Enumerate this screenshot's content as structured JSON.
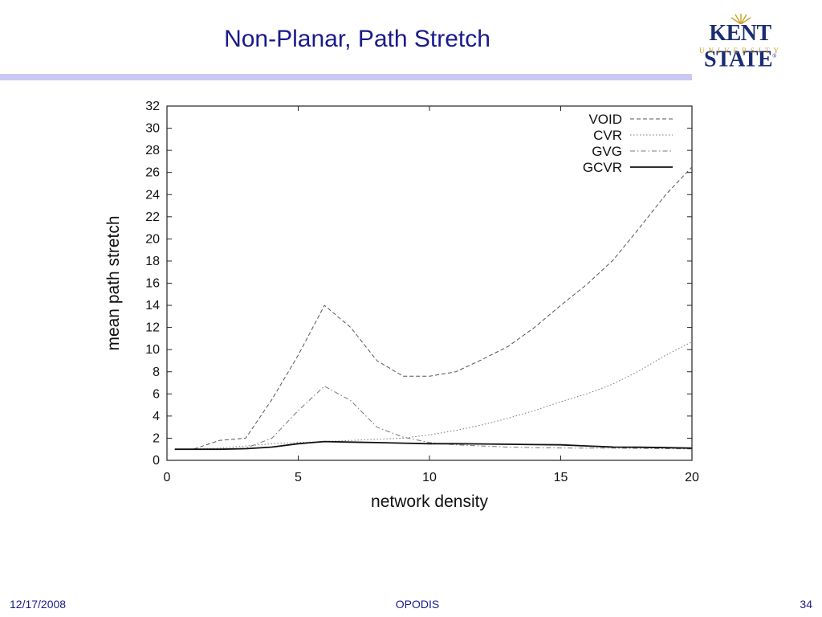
{
  "slide": {
    "title": "Non-Planar, Path Stretch",
    "logo_name": "KENT STATE",
    "logo_sub": "UNIVERSITY",
    "logo_registered": "®",
    "footer_date": "12/17/2008",
    "footer_center": "OPODIS",
    "footer_page": "34"
  },
  "colors": {
    "title": "#1a1a8c",
    "rule": "#c9c9f2",
    "logo_blue": "#1a2d73",
    "logo_gold": "#c9a227"
  },
  "chart_data": {
    "type": "line",
    "title": "",
    "xlabel": "network density",
    "ylabel": "mean path stretch",
    "xlim": [
      0,
      20
    ],
    "ylim": [
      0,
      32
    ],
    "xticks": [
      0,
      5,
      10,
      15,
      20
    ],
    "yticks": [
      0,
      2,
      4,
      6,
      8,
      10,
      12,
      14,
      16,
      18,
      20,
      22,
      24,
      26,
      28,
      30,
      32
    ],
    "grid": false,
    "legend_position": "top-right",
    "series": [
      {
        "name": "VOID",
        "dash": "dashed",
        "x": [
          0.3,
          1,
          2,
          3,
          4,
          5,
          6,
          7,
          8,
          9,
          10,
          11,
          12,
          13,
          14,
          15,
          16,
          17,
          18,
          19,
          20
        ],
        "y": [
          1.0,
          1.0,
          1.8,
          2.0,
          5.5,
          9.5,
          14.0,
          12.0,
          9.0,
          7.6,
          7.6,
          8.0,
          9.1,
          10.3,
          12.0,
          14.0,
          15.9,
          18.1,
          21.0,
          24.0,
          26.5
        ]
      },
      {
        "name": "CVR",
        "dash": "dotted",
        "x": [
          0.3,
          1,
          2,
          3,
          4,
          5,
          6,
          7,
          8,
          9,
          10,
          11,
          12,
          13,
          14,
          15,
          16,
          17,
          18,
          19,
          20
        ],
        "y": [
          1.0,
          1.0,
          1.1,
          1.3,
          1.5,
          1.6,
          1.7,
          1.8,
          1.9,
          2.0,
          2.3,
          2.7,
          3.2,
          3.8,
          4.5,
          5.3,
          6.0,
          6.9,
          8.1,
          9.5,
          10.7
        ]
      },
      {
        "name": "GVG",
        "dash": "dash-dot",
        "x": [
          0.3,
          1,
          2,
          3,
          4,
          5,
          6,
          7,
          8,
          9,
          10,
          11,
          12,
          13,
          14,
          15,
          16,
          17,
          18,
          19,
          20
        ],
        "y": [
          1.0,
          1.0,
          1.0,
          1.1,
          2.0,
          4.5,
          6.7,
          5.4,
          3.0,
          2.1,
          1.6,
          1.4,
          1.3,
          1.2,
          1.15,
          1.12,
          1.1,
          1.1,
          1.08,
          1.05,
          1.03
        ]
      },
      {
        "name": "GCVR",
        "dash": "solid",
        "x": [
          0.3,
          1,
          2,
          3,
          4,
          5,
          6,
          7,
          8,
          9,
          10,
          11,
          12,
          13,
          14,
          15,
          16,
          17,
          18,
          19,
          20
        ],
        "y": [
          1.0,
          1.0,
          1.0,
          1.05,
          1.2,
          1.5,
          1.7,
          1.65,
          1.6,
          1.55,
          1.5,
          1.5,
          1.48,
          1.45,
          1.42,
          1.4,
          1.3,
          1.2,
          1.18,
          1.15,
          1.1
        ]
      }
    ]
  }
}
